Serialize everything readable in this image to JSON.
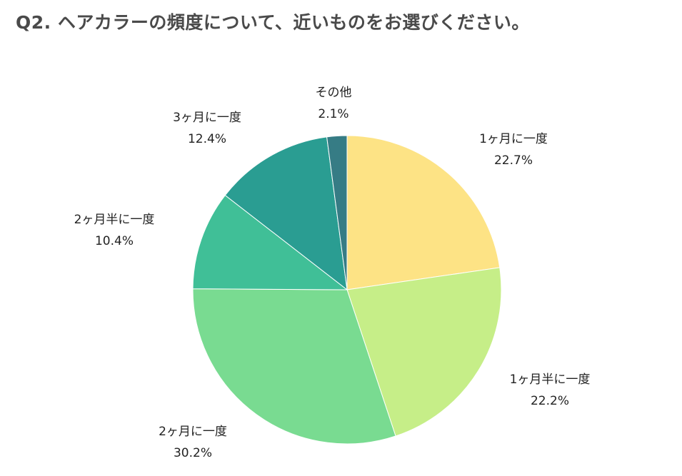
{
  "title": "Q2. ヘアカラーの頻度について、近いものをお選びください。",
  "chart_data": {
    "type": "pie",
    "title": "Q2. ヘアカラーの頻度について、近いものをお選びください。",
    "unit": "%",
    "start_angle_deg": 0,
    "direction": "clockwise",
    "slices": [
      {
        "label": "1ヶ月に一度",
        "value": 22.7,
        "display": "22.7%",
        "color": "#fde385"
      },
      {
        "label": "1ヶ月半に一度",
        "value": 22.2,
        "display": "22.2%",
        "color": "#c6ee88"
      },
      {
        "label": "2ヶ月に一度",
        "value": 30.2,
        "display": "30.2%",
        "color": "#79db91"
      },
      {
        "label": "2ヶ月半に一度",
        "value": 10.4,
        "display": "10.4%",
        "color": "#40bf97"
      },
      {
        "label": "3ヶ月に一度",
        "value": 12.4,
        "display": "12.4%",
        "color": "#2a9d92"
      },
      {
        "label": "その他",
        "value": 2.1,
        "display": "2.1%",
        "color": "#367c85"
      }
    ]
  }
}
